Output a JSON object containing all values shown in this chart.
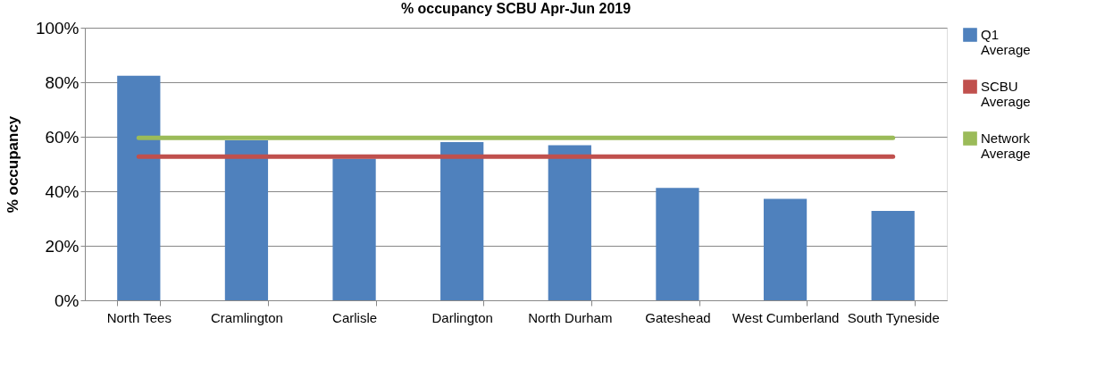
{
  "chart_data": {
    "type": "bar",
    "title": "% occupancy SCBU Apr-Jun 2019",
    "ylabel": "% occupancy",
    "categories": [
      "North Tees",
      "Cramlington",
      "Carlisle",
      "Darlington",
      "North Durham",
      "Gateshead",
      "West Cumberland",
      "South Tyneside"
    ],
    "series": [
      {
        "name": "Q1 Average",
        "color": "#4f81bd",
        "values": [
          82.4,
          58.7,
          52,
          58,
          56.9,
          41.2,
          37.2,
          32.8
        ]
      },
      {
        "name": "SCBU Average",
        "type": "line",
        "color": "#c0504d",
        "values": [
          52.7,
          52.7,
          52.7,
          52.7,
          52.7,
          52.7,
          52.7,
          52.7
        ]
      },
      {
        "name": "Network Average",
        "type": "line",
        "color": "#9bbb59",
        "values": [
          59.6,
          59.6,
          59.6,
          59.6,
          59.6,
          59.6,
          59.6,
          59.6
        ]
      }
    ],
    "ylim": [
      0,
      100
    ],
    "yticks": [
      {
        "value": 0,
        "label": "0%"
      },
      {
        "value": 20,
        "label": "20%"
      },
      {
        "value": 40,
        "label": "40%"
      },
      {
        "value": 60,
        "label": "60%"
      },
      {
        "value": 80,
        "label": "80%"
      },
      {
        "value": 100,
        "label": "100%"
      }
    ],
    "grid": "y",
    "legend": "right"
  }
}
